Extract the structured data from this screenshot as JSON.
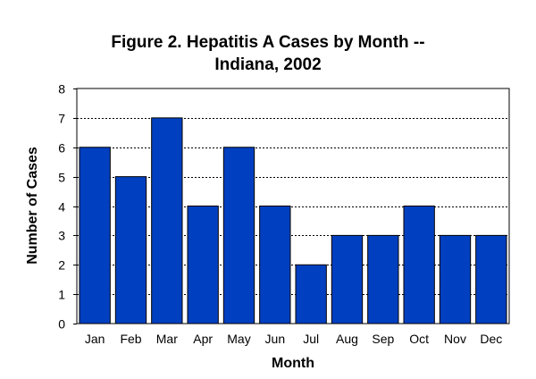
{
  "chart_data": {
    "type": "bar",
    "title": "Figure 2. Hepatitis A Cases by Month --",
    "subtitle": "Indiana, 2002",
    "xlabel": "Month",
    "ylabel": "Number of Cases",
    "categories": [
      "Jan",
      "Feb",
      "Mar",
      "Apr",
      "May",
      "Jun",
      "Jul",
      "Aug",
      "Sep",
      "Oct",
      "Nov",
      "Dec"
    ],
    "values": [
      6,
      5,
      7,
      4,
      6,
      4,
      2,
      3,
      3,
      4,
      3,
      3
    ],
    "ylim": [
      0,
      8
    ],
    "yticks": [
      "0",
      "1",
      "2",
      "3",
      "4",
      "5",
      "6",
      "7",
      "8"
    ],
    "grid": true,
    "legend": "none",
    "colors": {
      "bar": "#0040C0",
      "bar_edge": "#000000",
      "grid": "#000000"
    }
  }
}
